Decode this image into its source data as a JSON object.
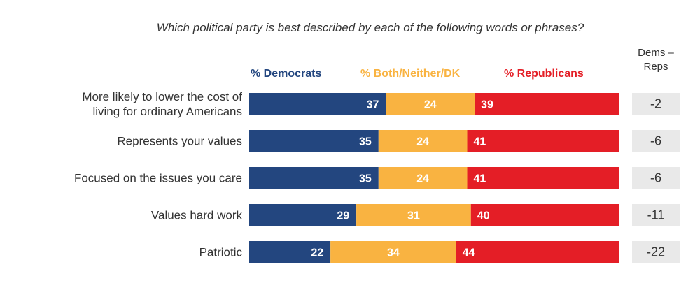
{
  "chart_data": {
    "type": "bar",
    "orientation": "horizontal",
    "stacked": true,
    "title": "Which political party is best described by each of the following words or phrases?",
    "categories": [
      [
        "More likely to lower the cost of",
        "living for ordinary Americans"
      ],
      [
        "Represents your values"
      ],
      [
        "Focused on the issues you care"
      ],
      [
        "Values hard work"
      ],
      [
        "Patriotic"
      ]
    ],
    "series": [
      {
        "name": "% Democrats",
        "color": "#23467F",
        "label_color": "#ffffff",
        "values": [
          37,
          35,
          35,
          29,
          22
        ]
      },
      {
        "name": "% Both/Neither/DK",
        "color": "#F9B341",
        "label_color": "#ffffff",
        "values": [
          24,
          24,
          24,
          31,
          34
        ]
      },
      {
        "name": "% Republicans",
        "color": "#E41E26",
        "label_color": "#ffffff",
        "values": [
          39,
          41,
          41,
          40,
          44
        ]
      }
    ],
    "difference_column": {
      "header": [
        "Dems –",
        "Reps"
      ],
      "values": [
        "-2",
        "-6",
        "-6",
        "-11",
        "-22"
      ],
      "box_color": "#E9E9E9"
    },
    "xlim": [
      0,
      100
    ],
    "legend_position": "top",
    "grid": false
  }
}
